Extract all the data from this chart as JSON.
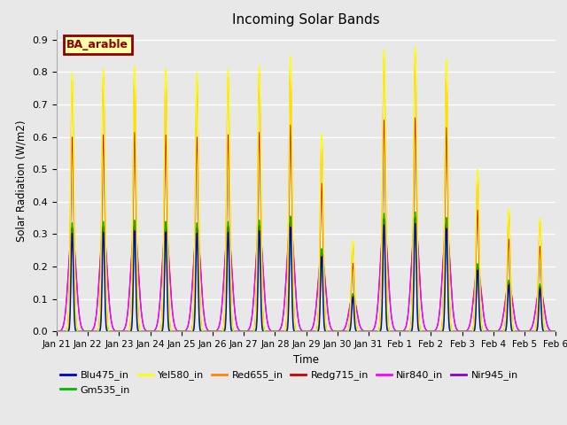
{
  "title": "Incoming Solar Bands",
  "xlabel": "Time",
  "ylabel": "Solar Radiation (W/m2)",
  "legend_label": "BA_arable",
  "series_labels": [
    "Blu475_in",
    "Gm535_in",
    "Yel580_in",
    "Red655_in",
    "Redg715_in",
    "Nir840_in",
    "Nir945_in"
  ],
  "series_colors": [
    "#0000cc",
    "#00bb00",
    "#ffff00",
    "#ff8800",
    "#cc0000",
    "#ff00ff",
    "#8800cc"
  ],
  "ylim": [
    0.0,
    0.93
  ],
  "yticks": [
    0.0,
    0.1,
    0.2,
    0.3,
    0.4,
    0.5,
    0.6,
    0.7,
    0.8,
    0.9
  ],
  "plot_bg_color": "#e8e8e8",
  "fig_bg_color": "#e8e8e8",
  "n_days": 16,
  "legend_box_color": "#ffffaa",
  "legend_box_edge": "#8b0000",
  "day_peaks_yel": [
    0.8,
    0.81,
    0.82,
    0.81,
    0.8,
    0.81,
    0.82,
    0.85,
    0.61,
    0.28,
    0.87,
    0.88,
    0.84,
    0.5,
    0.38,
    0.35
  ],
  "sigma_narrow": 0.05,
  "sigma_broad": 0.12,
  "scale_blu": 0.38,
  "scale_grn": 0.42,
  "scale_yel": 1.0,
  "scale_red": 0.97,
  "scale_redg": 0.75,
  "scale_nir840": 0.38,
  "scale_nir945": 0.4
}
